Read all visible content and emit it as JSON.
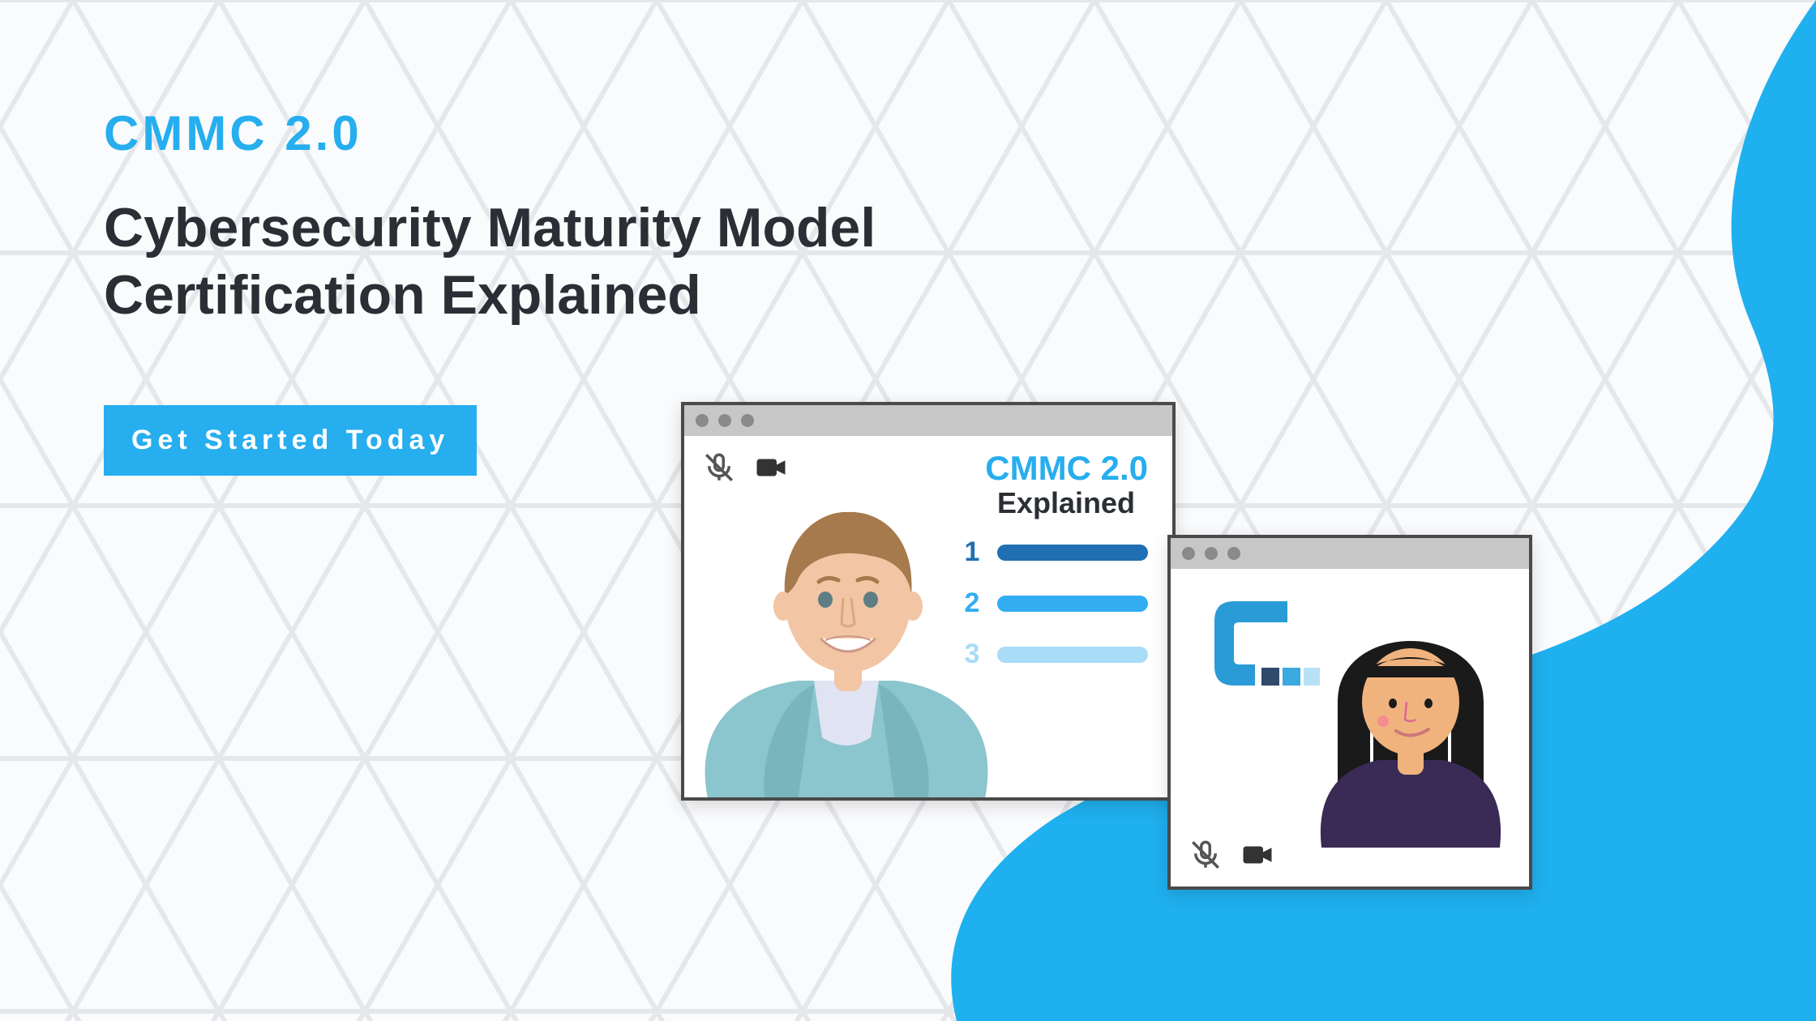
{
  "colors": {
    "accent": "#26aeef",
    "ink": "#2b2f35",
    "cta_bg": "#26aeef",
    "cta_text": "#ffffff",
    "hex_stroke": "#e5e7ea",
    "blob": "#1fb0ef",
    "browser_border": "#4a4a4a",
    "titlebar": "#c7c7c7",
    "titlebar_dot": "#8a8a8a"
  },
  "hero": {
    "eyebrow": "CMMC 2.0",
    "title_line1": "Cybersecurity Maturity Model",
    "title_line2": "Certification Explained",
    "cta_label": "Get Started Today"
  },
  "main_window": {
    "slide_title_1": "CMMC 2.0",
    "slide_title_2": "Explained",
    "bars": [
      {
        "n": "1",
        "color": "#1f6fb2",
        "num_color": "#1f6fb2",
        "width_pct": 100
      },
      {
        "n": "2",
        "color": "#33adf2",
        "num_color": "#33adf2",
        "width_pct": 100
      },
      {
        "n": "3",
        "color": "#a8dcf7",
        "num_color": "#a8dcf7",
        "width_pct": 55
      }
    ],
    "presenter": {
      "hair": "#a67a4c",
      "skin": "#f2c6a5",
      "suit": "#8bc5cd",
      "shirt": "#dfe3f2"
    }
  },
  "small_window": {
    "participant": {
      "hair": "#1a1a1a",
      "skin": "#f0b37e",
      "shirt": "#3a2a56"
    },
    "logo": {
      "main": "#2a9bd6",
      "sq1": "#2f4a6b",
      "sq2": "#3aa9e0",
      "sq3": "#b9e1f5"
    }
  },
  "icons": {
    "mic_muted": "mic-muted-icon",
    "camera": "camera-icon"
  }
}
